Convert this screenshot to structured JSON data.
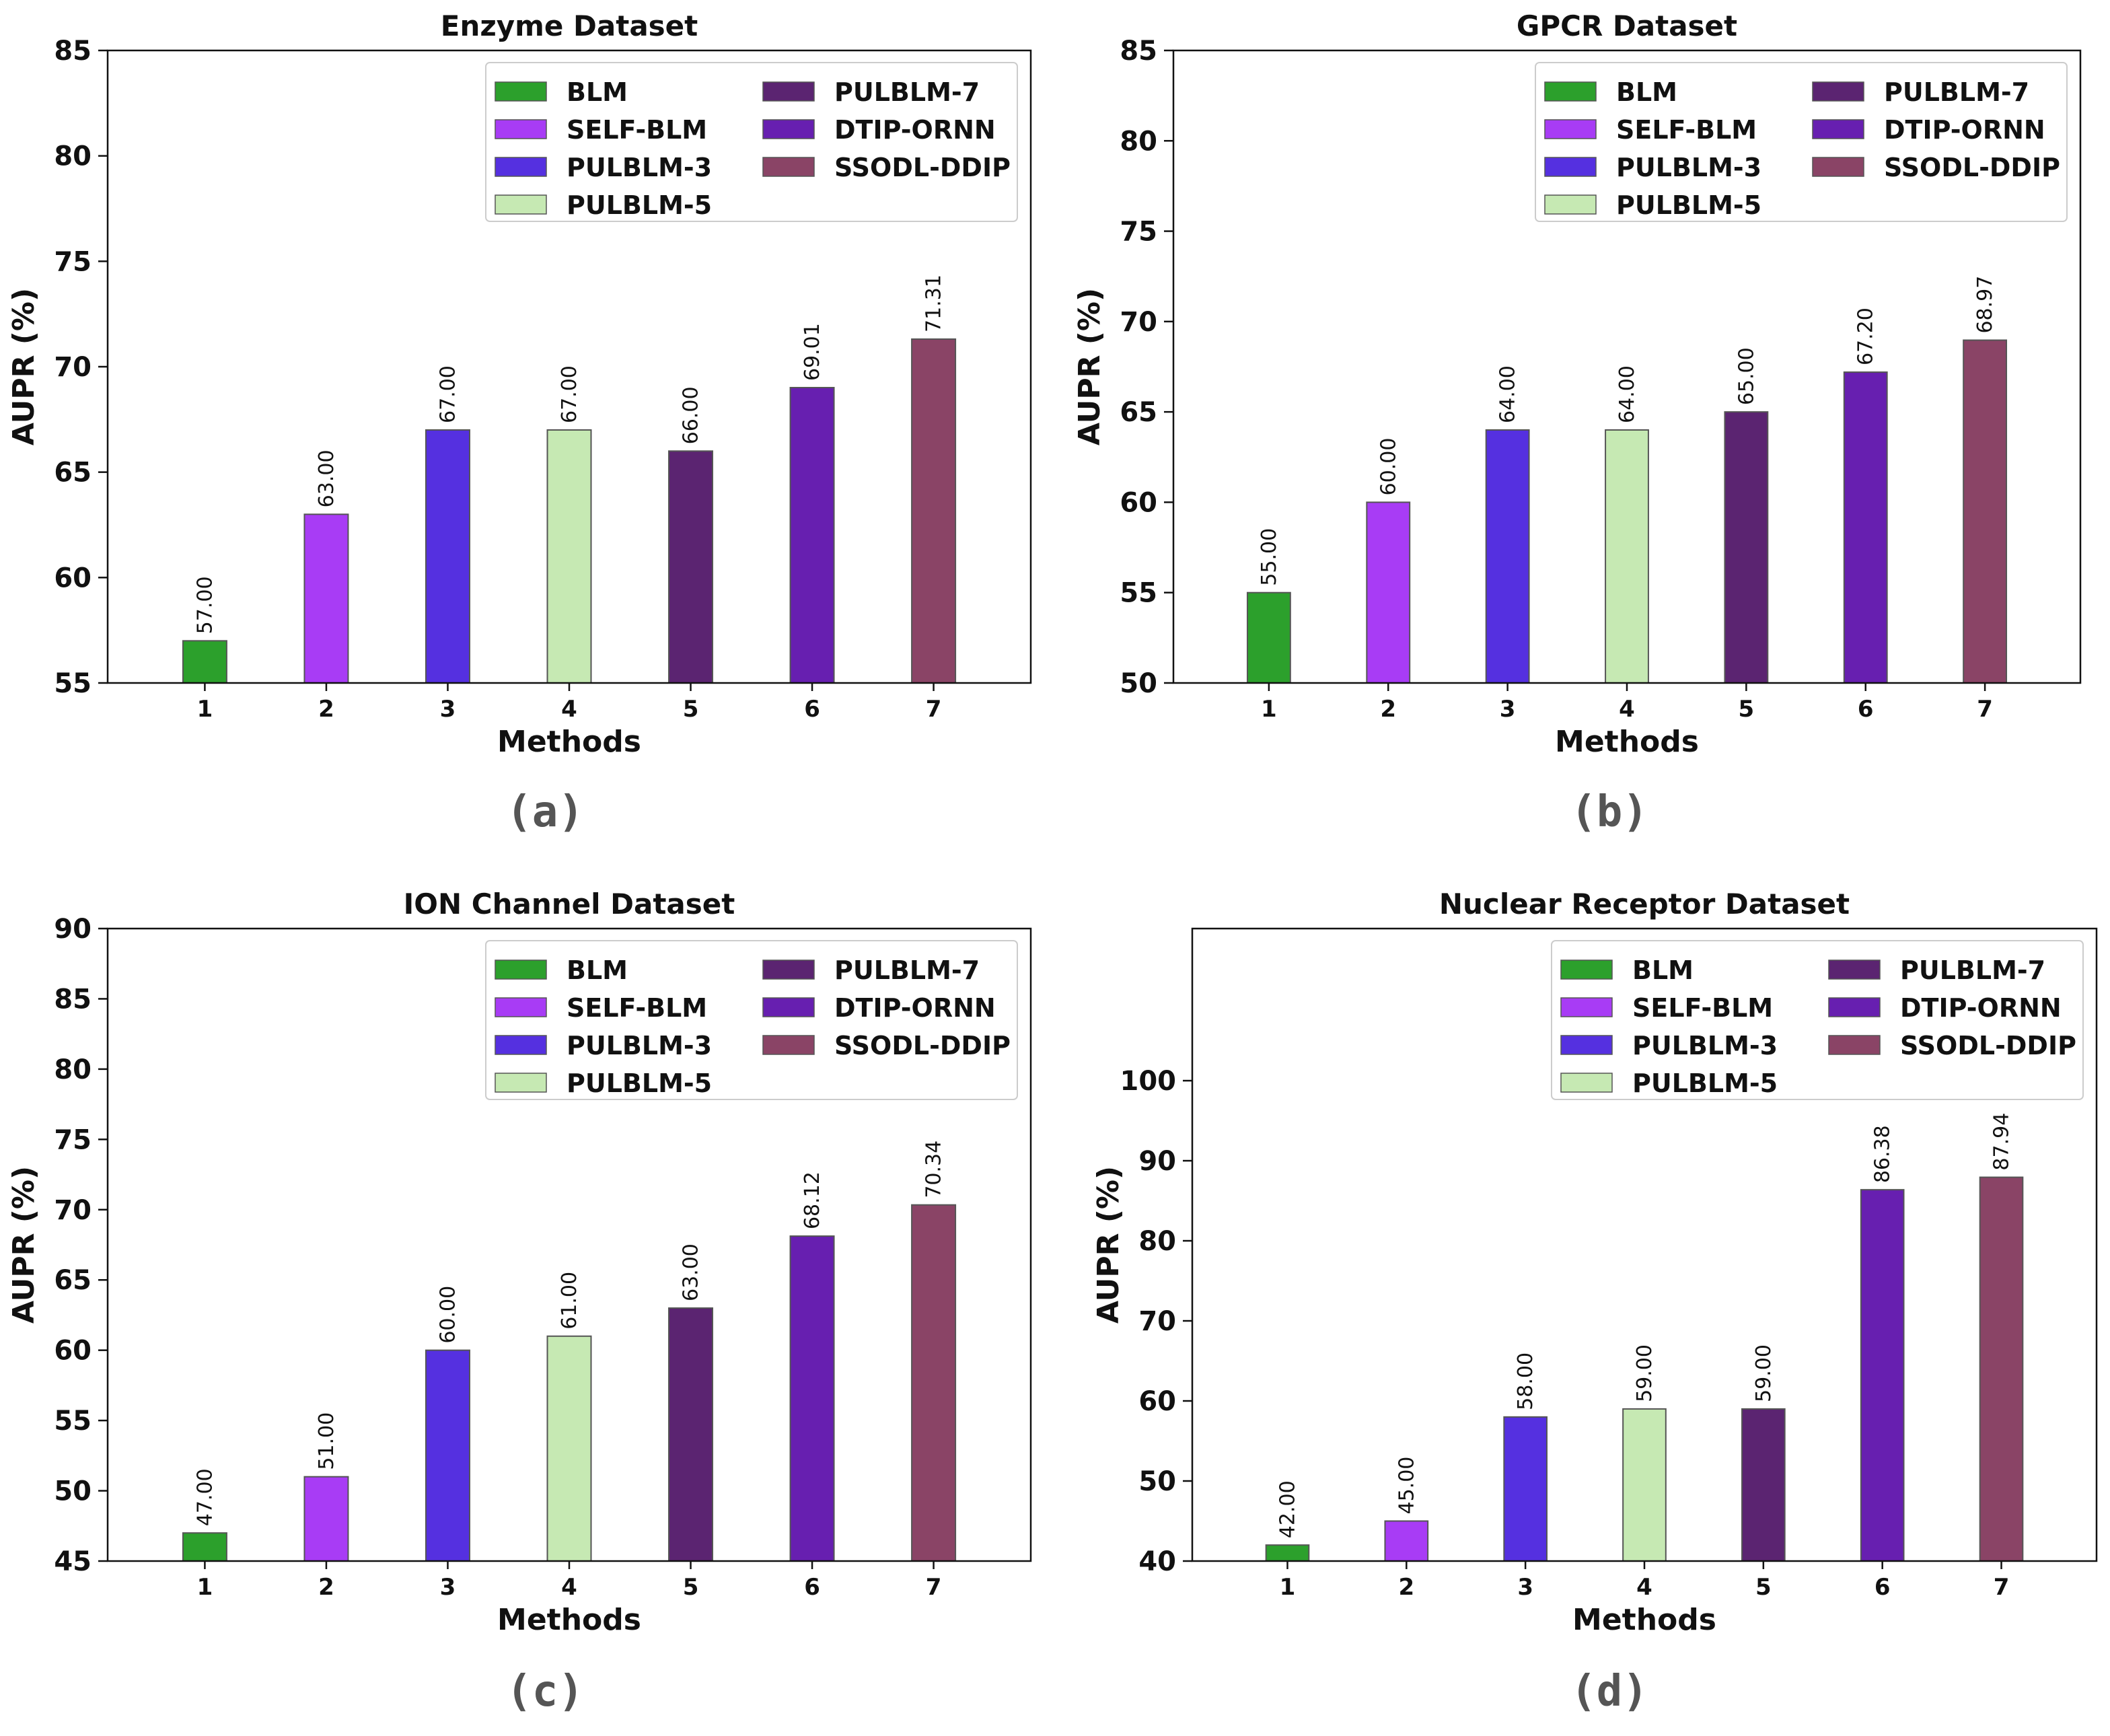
{
  "figure": {
    "legend_labels": [
      "BLM",
      "SELF-BLM",
      "PULBLM-3",
      "PULBLM-5",
      "PULBLM-7",
      "DTIP-ORNN",
      "SSODL-DDIP"
    ],
    "colors": [
      "#2ca02c",
      "#a83cf5",
      "#5530e0",
      "#c6e9b3",
      "#5b2471",
      "#671fb0",
      "#8a4466"
    ],
    "edge_colors": [
      "#555555",
      "#555555",
      "#555555",
      "#555555",
      "#555555",
      "#555555",
      "#555555"
    ]
  },
  "chart_data": [
    {
      "type": "bar",
      "panel_label": "(a)",
      "title": "Enzyme Dataset",
      "xlabel": "Methods",
      "ylabel": "AUPR (%)",
      "categories": [
        "1",
        "2",
        "3",
        "4",
        "5",
        "6",
        "7"
      ],
      "values": [
        57.0,
        63.0,
        67.0,
        67.0,
        66.0,
        69.01,
        71.31
      ],
      "value_labels": [
        "57.00",
        "63.00",
        "67.00",
        "67.00",
        "66.00",
        "69.01",
        "71.31"
      ],
      "ylim": [
        55,
        85
      ],
      "yticks": [
        55,
        60,
        65,
        70,
        75,
        80,
        85
      ],
      "legend_position": "upper-right"
    },
    {
      "type": "bar",
      "panel_label": "(b)",
      "title": "GPCR Dataset",
      "xlabel": "Methods",
      "ylabel": "AUPR (%)",
      "categories": [
        "1",
        "2",
        "3",
        "4",
        "5",
        "6",
        "7"
      ],
      "values": [
        55.0,
        60.0,
        64.0,
        64.0,
        65.0,
        67.2,
        68.97
      ],
      "value_labels": [
        "55.00",
        "60.00",
        "64.00",
        "64.00",
        "65.00",
        "67.20",
        "68.97"
      ],
      "ylim": [
        50,
        85
      ],
      "yticks": [
        50,
        55,
        60,
        65,
        70,
        75,
        80,
        85
      ],
      "legend_position": "upper-right"
    },
    {
      "type": "bar",
      "panel_label": "(c)",
      "title": "ION Channel Dataset",
      "xlabel": "Methods",
      "ylabel": "AUPR (%)",
      "categories": [
        "1",
        "2",
        "3",
        "4",
        "5",
        "6",
        "7"
      ],
      "values": [
        47.0,
        51.0,
        60.0,
        61.0,
        63.0,
        68.12,
        70.34
      ],
      "value_labels": [
        "47.00",
        "51.00",
        "60.00",
        "61.00",
        "63.00",
        "68.12",
        "70.34"
      ],
      "ylim": [
        45,
        90
      ],
      "yticks": [
        45,
        50,
        55,
        60,
        65,
        70,
        75,
        80,
        85,
        90
      ],
      "legend_position": "upper-right"
    },
    {
      "type": "bar",
      "panel_label": "(d)",
      "title": "Nuclear Receptor Dataset",
      "xlabel": "Methods",
      "ylabel": "AUPR (%)",
      "categories": [
        "1",
        "2",
        "3",
        "4",
        "5",
        "6",
        "7"
      ],
      "values": [
        42.0,
        45.0,
        58.0,
        59.0,
        59.0,
        86.38,
        87.94
      ],
      "value_labels": [
        "42.00",
        "45.00",
        "58.00",
        "59.00",
        "59.00",
        "86.38",
        "87.94"
      ],
      "ylim": [
        40,
        119
      ],
      "yticks": [
        40,
        50,
        60,
        70,
        80,
        90,
        100
      ],
      "legend_position": "upper-right"
    }
  ]
}
